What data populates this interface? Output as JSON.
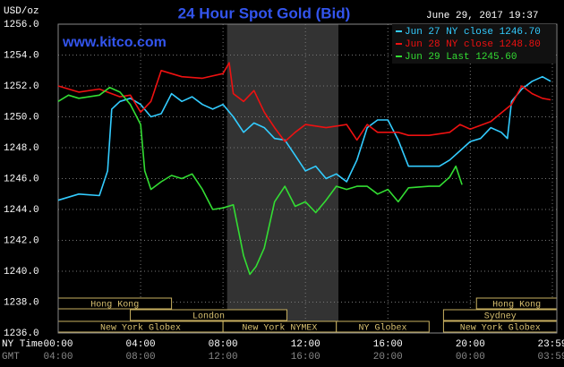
{
  "chart_data": {
    "type": "line",
    "title": "24 Hour Spot Gold (Bid)",
    "y_label": "USD/oz",
    "source": "www.kitco.com",
    "timestamp": "June 29, 2017 19:37",
    "x_label": "NY Time",
    "x2_label": "GMT",
    "background": "#000000",
    "grid": true,
    "legend": "top-right",
    "xlim": [
      0,
      24.2
    ],
    "ylim": [
      1236,
      1256
    ],
    "shade": [
      8.2,
      13.6
    ],
    "xticks": [
      {
        "value": 0,
        "label": "00:00"
      },
      {
        "value": 4,
        "label": "04:00"
      },
      {
        "value": 8,
        "label": "08:00"
      },
      {
        "value": 12,
        "label": "12:00"
      },
      {
        "value": 16,
        "label": "16:00"
      },
      {
        "value": 20,
        "label": "20:00"
      },
      {
        "value": 23.983,
        "label": "23:59"
      }
    ],
    "x2ticks": [
      {
        "value": 0,
        "label": "04:00"
      },
      {
        "value": 4,
        "label": "08:00"
      },
      {
        "value": 8,
        "label": "12:00"
      },
      {
        "value": 12,
        "label": "16:00"
      },
      {
        "value": 16,
        "label": "20:00"
      },
      {
        "value": 20,
        "label": "00:00"
      },
      {
        "value": 23.983,
        "label": "03:59"
      }
    ],
    "yticks": [
      {
        "value": 1236,
        "label": "1236.0"
      },
      {
        "value": 1238,
        "label": "1238.0"
      },
      {
        "value": 1240,
        "label": "1240.0"
      },
      {
        "value": 1242,
        "label": "1242.0"
      },
      {
        "value": 1244,
        "label": "1244.0"
      },
      {
        "value": 1246,
        "label": "1246.0"
      },
      {
        "value": 1248,
        "label": "1248.0"
      },
      {
        "value": 1250,
        "label": "1250.0"
      },
      {
        "value": 1252,
        "label": "1252.0"
      },
      {
        "value": 1254,
        "label": "1254.0"
      },
      {
        "value": 1256,
        "label": "1256.0"
      }
    ],
    "sessions": [
      [
        {
          "label": "Hong Kong",
          "start": 0,
          "end": 5.5
        },
        {
          "label": "Hong Kong",
          "start": 20.3,
          "end": 24.2
        }
      ],
      [
        {
          "label": "London",
          "start": 3.5,
          "end": 11.1
        },
        {
          "label": "Sydney",
          "start": 18.7,
          "end": 24.2
        }
      ],
      [
        {
          "label": "New York Globex",
          "start": 0,
          "end": 8
        },
        {
          "label": "New York NYMEX",
          "start": 8,
          "end": 13.5
        },
        {
          "label": "NY Globex",
          "start": 13.5,
          "end": 18
        },
        {
          "label": "New York Globex",
          "start": 18.7,
          "end": 24.2
        }
      ]
    ],
    "series": [
      {
        "name": "Jun 27 NY close 1246.70",
        "color": "#33ccff",
        "x": [
          0,
          1,
          2,
          2.4,
          2.6,
          3,
          3.5,
          4,
          4.5,
          5,
          5.5,
          6,
          6.5,
          7,
          7.5,
          8,
          8.5,
          9,
          9.5,
          10,
          10.5,
          11,
          11.5,
          12,
          12.5,
          13,
          13.5,
          14,
          14.5,
          15,
          15.5,
          16,
          16.5,
          17,
          18.5,
          19,
          19.5,
          20,
          20.5,
          21,
          21.5,
          21.8,
          22,
          22.5,
          23,
          23.5,
          23.9
        ],
        "values": [
          1244.6,
          1245.0,
          1244.9,
          1246.5,
          1250.5,
          1251.0,
          1251.2,
          1250.8,
          1250.0,
          1250.2,
          1251.5,
          1251.0,
          1251.3,
          1250.8,
          1250.5,
          1250.8,
          1250.0,
          1249.0,
          1249.6,
          1249.3,
          1248.6,
          1248.5,
          1247.5,
          1246.5,
          1246.8,
          1246.0,
          1246.3,
          1245.8,
          1247.2,
          1249.3,
          1249.8,
          1249.8,
          1248.5,
          1246.8,
          1246.8,
          1247.2,
          1247.8,
          1248.4,
          1248.6,
          1249.3,
          1249.0,
          1248.6,
          1251.0,
          1251.8,
          1252.3,
          1252.6,
          1252.3
        ]
      },
      {
        "name": "Jun 28 NY close 1248.80",
        "color": "#ee1111",
        "x": [
          0,
          1,
          2,
          3,
          3.5,
          4,
          4.5,
          5,
          6,
          7,
          8,
          8.3,
          8.5,
          9,
          9.5,
          10,
          10.5,
          11,
          11.5,
          12,
          13,
          14,
          14.5,
          15,
          15.5,
          16.5,
          17,
          18,
          19,
          19.5,
          20,
          21,
          22,
          22.5,
          23,
          23.5,
          23.9
        ],
        "values": [
          1252.0,
          1251.6,
          1251.8,
          1251.3,
          1251.4,
          1250.3,
          1251.0,
          1253.0,
          1252.6,
          1252.5,
          1252.8,
          1253.5,
          1251.5,
          1251.0,
          1251.7,
          1250.3,
          1249.3,
          1248.4,
          1249.0,
          1249.5,
          1249.3,
          1249.5,
          1248.5,
          1249.5,
          1249.0,
          1249.0,
          1248.8,
          1248.8,
          1249.0,
          1249.5,
          1249.2,
          1249.7,
          1250.8,
          1252.0,
          1251.5,
          1251.2,
          1251.1
        ]
      },
      {
        "name": "Jun 29 Last 1245.60",
        "color": "#33dd33",
        "x": [
          0,
          0.5,
          1,
          1.5,
          2,
          2.5,
          3,
          3.5,
          4,
          4.2,
          4.5,
          5,
          5.5,
          6,
          6.5,
          7,
          7.5,
          8,
          8.5,
          9,
          9.3,
          9.6,
          10,
          10.5,
          11,
          11.5,
          12,
          12.5,
          13,
          13.5,
          14,
          14.5,
          15,
          15.5,
          16,
          16.5,
          17,
          18,
          18.5,
          19,
          19.3,
          19.6
        ],
        "values": [
          1251.0,
          1251.4,
          1251.2,
          1251.3,
          1251.4,
          1251.9,
          1251.6,
          1250.8,
          1249.5,
          1246.5,
          1245.3,
          1245.8,
          1246.2,
          1246.0,
          1246.3,
          1245.3,
          1244.0,
          1244.1,
          1244.3,
          1241.0,
          1239.8,
          1240.3,
          1241.5,
          1244.5,
          1245.5,
          1244.2,
          1244.5,
          1243.8,
          1244.6,
          1245.5,
          1245.3,
          1245.5,
          1245.5,
          1245.0,
          1245.3,
          1244.5,
          1245.4,
          1245.5,
          1245.5,
          1246.1,
          1246.8,
          1245.6
        ]
      }
    ]
  }
}
